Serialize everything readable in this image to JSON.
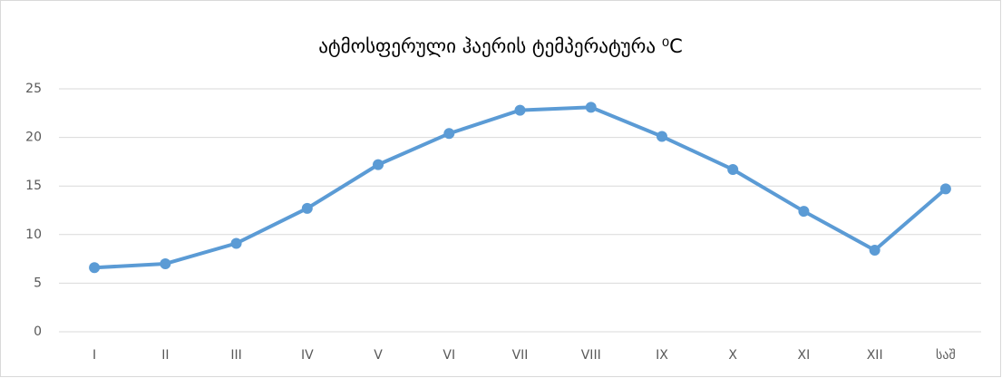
{
  "chart_data": {
    "type": "line",
    "title": "ატმოსფერული ჰაერის ტემპერატურა ⁰C",
    "categories": [
      "I",
      "II",
      "III",
      "IV",
      "V",
      "VI",
      "VII",
      "VIII",
      "IX",
      "X",
      "XI",
      "XII",
      "საშ"
    ],
    "series": [
      {
        "name": "ტემპერატურა",
        "color": "#5b9bd5",
        "values": [
          6.6,
          7.0,
          9.1,
          12.7,
          17.2,
          20.4,
          22.8,
          23.1,
          20.1,
          16.7,
          12.4,
          8.4,
          14.7
        ]
      }
    ],
    "ylim": [
      0,
      25
    ],
    "yticks": [
      0,
      5,
      10,
      15,
      20,
      25
    ],
    "grid": true
  }
}
